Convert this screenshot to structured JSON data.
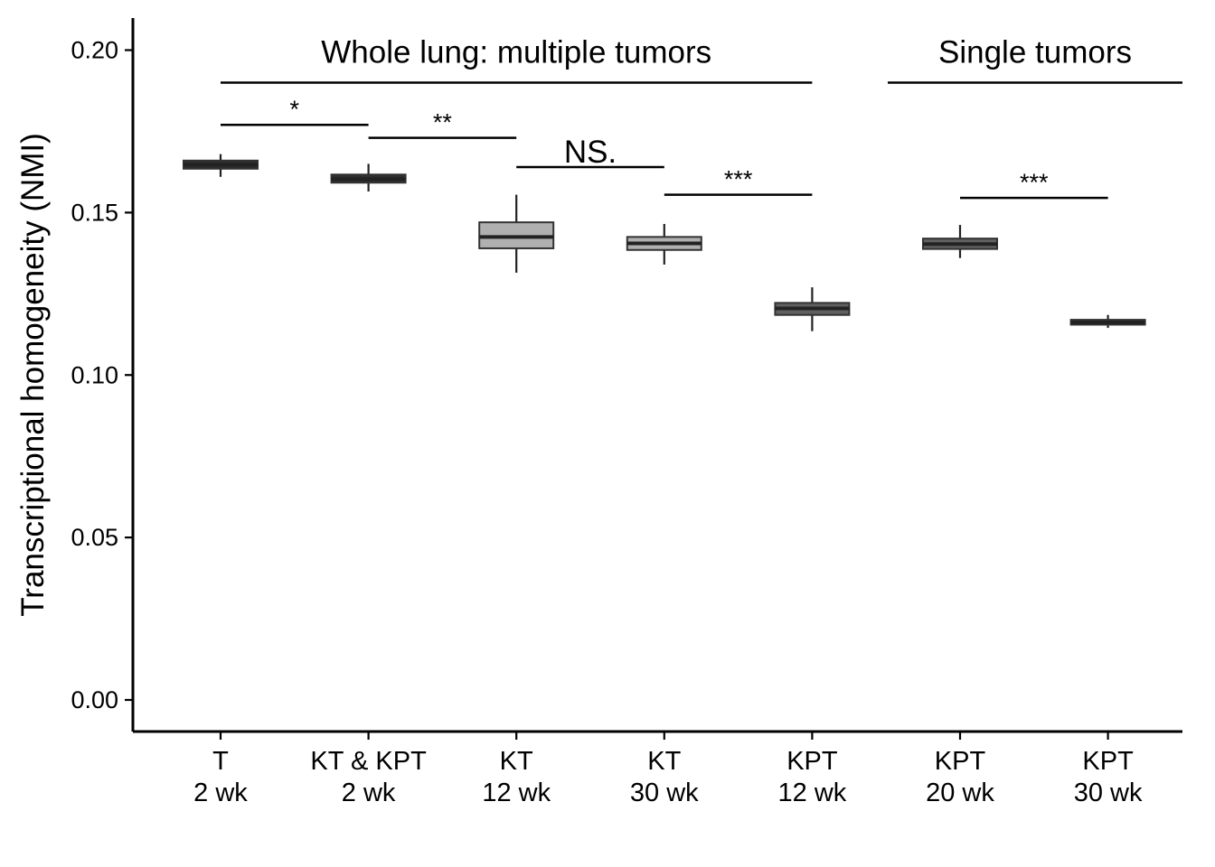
{
  "chart_data": {
    "type": "box",
    "ylabel": "Transcriptional homogeneity (NMI)",
    "ylim": [
      -0.01,
      0.21
    ],
    "yticks": [
      {
        "value": 0.0,
        "label": "0.00"
      },
      {
        "value": 0.05,
        "label": "0.05"
      },
      {
        "value": 0.1,
        "label": "0.10"
      },
      {
        "value": 0.15,
        "label": "0.15"
      },
      {
        "value": 0.2,
        "label": "0.20"
      }
    ],
    "categories": [
      {
        "line1": "T",
        "line2": "2 wk",
        "min": 0.161,
        "q1": 0.1635,
        "median": 0.1647,
        "q3": 0.166,
        "max": 0.168,
        "fill": "#2e2e2e"
      },
      {
        "line1": "KT & KPT",
        "line2": "2 wk",
        "min": 0.1565,
        "q1": 0.1592,
        "median": 0.1603,
        "q3": 0.1617,
        "max": 0.165,
        "fill": "#2e2e2e"
      },
      {
        "line1": "KT",
        "line2": "12 wk",
        "min": 0.1315,
        "q1": 0.139,
        "median": 0.1425,
        "q3": 0.147,
        "max": 0.1555,
        "fill": "#b0b0b0"
      },
      {
        "line1": "KT",
        "line2": "30 wk",
        "min": 0.134,
        "q1": 0.1385,
        "median": 0.1405,
        "q3": 0.1425,
        "max": 0.1465,
        "fill": "#b0b0b0"
      },
      {
        "line1": "KPT",
        "line2": "12 wk",
        "min": 0.1135,
        "q1": 0.1185,
        "median": 0.1205,
        "q3": 0.1222,
        "max": 0.127,
        "fill": "#606060"
      },
      {
        "line1": "KPT",
        "line2": "20 wk",
        "min": 0.136,
        "q1": 0.1388,
        "median": 0.1403,
        "q3": 0.142,
        "max": 0.1462,
        "fill": "#606060"
      },
      {
        "line1": "KPT",
        "line2": "30 wk",
        "min": 0.1145,
        "q1": 0.1155,
        "median": 0.1162,
        "q3": 0.117,
        "max": 0.1185,
        "fill": "#2e2e2e"
      }
    ],
    "groups": [
      {
        "label": "Whole lung: multiple tumors",
        "from": 0,
        "to": 4,
        "y": 0.19
      },
      {
        "label": "Single tumors",
        "from": 5,
        "to": 6,
        "y": 0.19
      }
    ],
    "comparisons": [
      {
        "from": 0,
        "to": 1,
        "label": "*",
        "y": 0.177
      },
      {
        "from": 1,
        "to": 2,
        "label": "**",
        "y": 0.173
      },
      {
        "from": 2,
        "to": 3,
        "label": "NS.",
        "y": 0.164
      },
      {
        "from": 3,
        "to": 4,
        "label": "***",
        "y": 0.1555
      },
      {
        "from": 5,
        "to": 6,
        "label": "***",
        "y": 0.1545
      }
    ],
    "grid": false,
    "legend": "none"
  }
}
